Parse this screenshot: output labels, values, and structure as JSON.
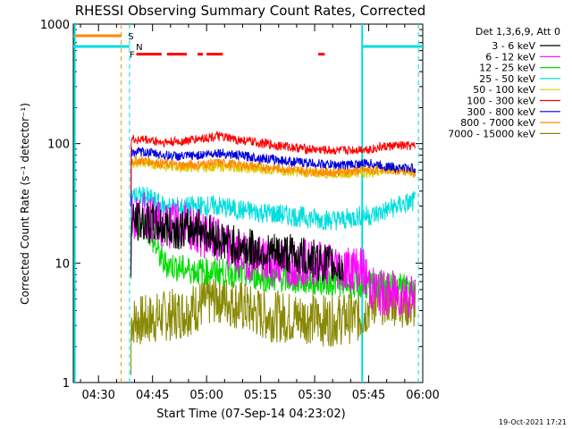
{
  "chart_data": {
    "type": "line",
    "title": "RHESSI Observing Summary Count Rates, Corrected",
    "xlabel": "Start Time (07-Sep-14 04:23:02)",
    "ylabel": "Corrected Count Rate (s⁻¹ detector⁻¹)",
    "yscale": "log",
    "ylim": [
      1,
      1000
    ],
    "xlim_minutes_after_0423": [
      0,
      97
    ],
    "x_tick_labels": [
      "04:30",
      "04:45",
      "05:00",
      "05:15",
      "05:30",
      "05:45",
      "06:00"
    ],
    "x_tick_minutes": [
      7,
      22,
      37,
      52,
      67,
      82,
      97
    ],
    "y_tick_labels": [
      "1",
      "10",
      "100",
      "1000"
    ],
    "y_tick_values": [
      1,
      10,
      100,
      1000
    ],
    "legend_title": "Det 1,3,6,9, Att 0",
    "legend_position": "right",
    "footer_date": "19-Oct-2021 17:21",
    "x_minutes": [
      17,
      20,
      25,
      30,
      35,
      40,
      45,
      50,
      55,
      60,
      65,
      70,
      75,
      80,
      83,
      86,
      90,
      95
    ],
    "series": [
      {
        "name": "3 - 6 keV",
        "color": "#000000",
        "values": [
          null,
          22,
          20,
          19,
          20,
          16,
          14,
          13,
          12,
          12,
          11,
          10,
          9,
          null,
          null,
          null,
          null,
          null
        ]
      },
      {
        "name": "6 - 12 keV",
        "color": "#ff00ff",
        "values": [
          null,
          25,
          20,
          22,
          18,
          15,
          12,
          11,
          10,
          10,
          10,
          10,
          9,
          9,
          6,
          5.5,
          5.5,
          5.5
        ]
      },
      {
        "name": "12 - 25 keV",
        "color": "#00dd00",
        "values": [
          null,
          21,
          10,
          9,
          8.5,
          8.5,
          8.2,
          7.8,
          7.5,
          7.3,
          7,
          7,
          6.8,
          6.5,
          6.5,
          6.5,
          6.5,
          6.5
        ]
      },
      {
        "name": "25 - 50 keV",
        "color": "#00dddd",
        "values": [
          null,
          36,
          30,
          29,
          30,
          30,
          28,
          27,
          26,
          25,
          24,
          23,
          23,
          25,
          25,
          27,
          30,
          33
        ]
      },
      {
        "name": "50 - 100 keV",
        "color": "#ddcc00",
        "values": [
          null,
          68,
          65,
          63,
          63,
          64,
          63,
          61,
          60,
          58,
          57,
          56,
          56,
          57,
          57,
          59,
          60,
          58
        ]
      },
      {
        "name": "100 - 300 keV",
        "color": "#ff0000",
        "values": [
          null,
          108,
          102,
          104,
          110,
          115,
          108,
          103,
          98,
          94,
          90,
          88,
          87,
          90,
          90,
          94,
          96,
          95
        ]
      },
      {
        "name": "300 - 800 keV",
        "color": "#0000dd",
        "values": [
          null,
          85,
          80,
          78,
          80,
          84,
          80,
          77,
          74,
          71,
          69,
          67,
          66,
          68,
          68,
          65,
          63,
          62
        ]
      },
      {
        "name": "800 - 7000 keV",
        "color": "#ff8800",
        "values": [
          null,
          72,
          68,
          66,
          67,
          69,
          67,
          65,
          63,
          61,
          59,
          58,
          58,
          60,
          60,
          62,
          60,
          57
        ]
      },
      {
        "name": "7000 - 15000 keV",
        "color": "#888800",
        "values": [
          null,
          3.3,
          3.6,
          3.8,
          4.4,
          5.2,
          4.6,
          3.9,
          3.6,
          3.5,
          3.5,
          3.3,
          3.4,
          3.6,
          4.8,
          5,
          4.9,
          4.4
        ]
      }
    ],
    "annotations": [
      {
        "label": "S",
        "color": "#ff8800"
      },
      {
        "label": "N",
        "color": "#00dddd"
      },
      {
        "label": "F",
        "color": "#ff0000"
      }
    ]
  }
}
